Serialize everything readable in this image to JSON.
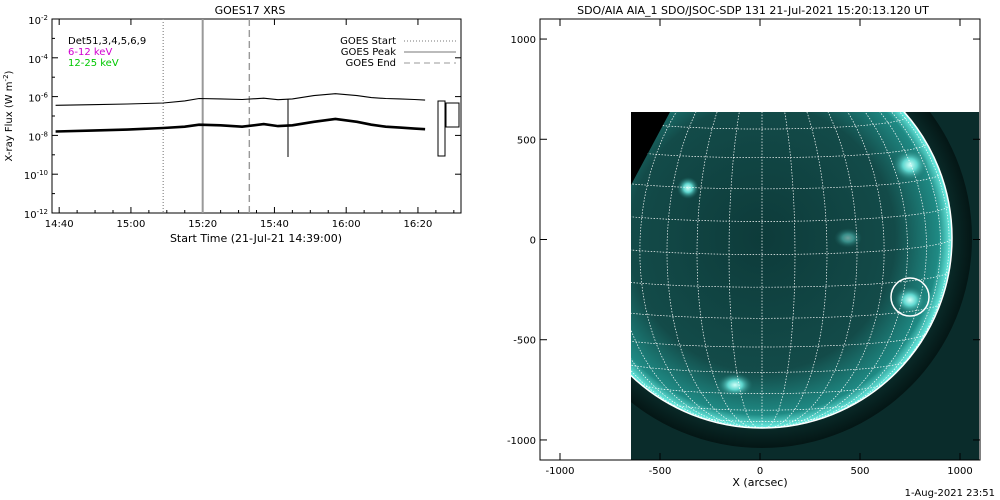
{
  "goes_panel": {
    "title": "GOES17 XRS",
    "legend_left": [
      {
        "text": "Det51,3,4,5,6,9",
        "color": "#000000"
      },
      {
        "text": "6-12  keV",
        "color": "#d000d0"
      },
      {
        "text": "12-25  keV",
        "color": "#00c800"
      }
    ],
    "legend_right": [
      {
        "label": "GOES Start",
        "style": "dotted"
      },
      {
        "label": "GOES Peak",
        "style": "solid"
      },
      {
        "label": "GOES End",
        "style": "dashed"
      }
    ]
  },
  "aia_panel": {
    "title": "SDO/AIA AIA_1 SDO/JSOC-SDP 131 21-Jul-2021 15:20:13.120 UT",
    "colormap": "#1aa6a0"
  },
  "footer_timestamp": "1-Aug-2021 23:51",
  "chart_data": [
    {
      "type": "line",
      "title": "GOES17 XRS",
      "xlabel": "Start Time (21-Jul-21 14:39:00)",
      "ylabel": "X-ray Flux (W m^-2)",
      "y_scale": "log",
      "ylim": [
        1e-12,
        0.01
      ],
      "y_ticks": [
        "10^-2",
        "10^-4",
        "10^-6",
        "10^-8",
        "10^-10",
        "10^-12"
      ],
      "x_ticks": [
        "14:40",
        "15:00",
        "15:20",
        "15:40",
        "16:00",
        "16:20"
      ],
      "x_range_minutes": [
        0,
        114
      ],
      "vertical_markers": [
        {
          "name": "GOES Start",
          "time_min": 30,
          "style": "dotted"
        },
        {
          "name": "GOES Peak",
          "time_min": 41,
          "style": "solid"
        },
        {
          "name": "GOES End",
          "time_min": 54,
          "style": "dashed"
        }
      ],
      "series": [
        {
          "name": "upper",
          "color": "#000000",
          "x_min": [
            0,
            10,
            20,
            30,
            36,
            40,
            46,
            52,
            58,
            62,
            66,
            72,
            78,
            84,
            88,
            92,
            96,
            100,
            103
          ],
          "log_flux": [
            -6.45,
            -6.42,
            -6.38,
            -6.33,
            -6.22,
            -6.1,
            -6.12,
            -6.15,
            -6.08,
            -6.16,
            -6.12,
            -5.95,
            -5.85,
            -5.95,
            -6.05,
            -6.1,
            -6.12,
            -6.15,
            -6.18
          ]
        },
        {
          "name": "lower",
          "color": "#000000",
          "x_min": [
            0,
            10,
            20,
            30,
            36,
            40,
            46,
            52,
            58,
            62,
            66,
            72,
            78,
            84,
            88,
            92,
            96,
            100,
            103
          ],
          "log_flux": [
            -7.8,
            -7.75,
            -7.7,
            -7.62,
            -7.55,
            -7.45,
            -7.48,
            -7.55,
            -7.42,
            -7.52,
            -7.48,
            -7.3,
            -7.15,
            -7.3,
            -7.45,
            -7.55,
            -7.6,
            -7.65,
            -7.68
          ]
        }
      ]
    },
    {
      "type": "scatter",
      "title": "SDO/AIA AIA_1 SDO/JSOC-SDP 131 21-Jul-2021 15:20:13.120 UT",
      "xlabel": "X (arcsec)",
      "ylabel": "",
      "xlim": [
        -1100,
        1100
      ],
      "ylim": [
        -1100,
        1100
      ],
      "x_ticks": [
        "-1000",
        "-500",
        "0",
        "500",
        "1000"
      ],
      "y_ticks": [
        "1000",
        "500",
        "0",
        "-500",
        "-1000"
      ],
      "image_extent": {
        "x": [
          -650,
          1100
        ],
        "y": [
          -1100,
          640
        ]
      },
      "flare_circle": {
        "x": 740,
        "y": -290,
        "r": 95
      }
    }
  ]
}
